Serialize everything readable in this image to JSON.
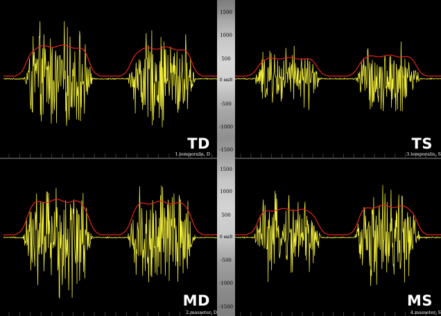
{
  "panels": [
    {
      "id": "td",
      "code": "TD",
      "channel_label": "1.temporalis, D",
      "signal_color": "#f4f03a",
      "envelope_color": "#e8251f",
      "bursts": [
        {
          "start": 0.09,
          "end": 0.42,
          "amp": 0.92
        },
        {
          "start": 0.58,
          "end": 0.9,
          "amp": 0.86
        }
      ]
    },
    {
      "id": "ts",
      "code": "TS",
      "channel_label": "3.temporalis, S",
      "signal_color": "#f4f03a",
      "envelope_color": "#e8251f",
      "bursts": [
        {
          "start": 0.09,
          "end": 0.42,
          "amp": 0.55
        },
        {
          "start": 0.58,
          "end": 0.9,
          "amp": 0.62
        }
      ]
    },
    {
      "id": "md",
      "code": "MD",
      "channel_label": "2.masseter, D",
      "signal_color": "#f4f03a",
      "envelope_color": "#e8251f",
      "bursts": [
        {
          "start": 0.09,
          "end": 0.42,
          "amp": 1.05
        },
        {
          "start": 0.58,
          "end": 0.9,
          "amp": 1.0
        }
      ]
    },
    {
      "id": "ms",
      "code": "MS",
      "channel_label": "4.masseter, S",
      "signal_color": "#f4f03a",
      "envelope_color": "#e8251f",
      "bursts": [
        {
          "start": 0.09,
          "end": 0.42,
          "amp": 0.78
        },
        {
          "start": 0.58,
          "end": 0.9,
          "amp": 0.88
        }
      ]
    }
  ],
  "axis": {
    "unit_label": "мкВ",
    "ticks": [
      "1500",
      "1000",
      "500",
      "0",
      "-500",
      "-1000",
      "-1500"
    ],
    "tick_values": [
      1500,
      1000,
      500,
      0,
      -500,
      -1000,
      -1500
    ],
    "zero_label": "0"
  },
  "colors": {
    "background": "#000000",
    "grid": "#3a3a3a",
    "axis_bar": "#c8c8c8"
  }
}
